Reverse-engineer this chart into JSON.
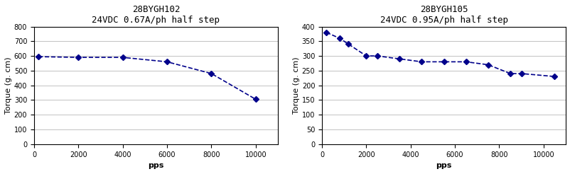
{
  "chart1": {
    "title": "28BYGH102",
    "subtitle": "24VDC 0.67A/ph half step",
    "x": [
      200,
      2000,
      4000,
      6000,
      8000,
      10000
    ],
    "y": [
      595,
      590,
      590,
      560,
      480,
      305
    ],
    "xlim": [
      0,
      11000
    ],
    "ylim": [
      0,
      800
    ],
    "xticks": [
      0,
      2000,
      4000,
      6000,
      8000,
      10000
    ],
    "yticks": [
      0,
      100,
      200,
      300,
      400,
      500,
      600,
      700,
      800
    ],
    "xlabel": "pps",
    "ylabel": "Torque (g. cm)"
  },
  "chart2": {
    "title": "28BYGH105",
    "subtitle": "24VDC 0.95A/ph half step",
    "x": [
      200,
      800,
      1200,
      2000,
      2500,
      3500,
      4500,
      5500,
      6500,
      7500,
      8500,
      9000,
      10500
    ],
    "y": [
      380,
      360,
      340,
      300,
      300,
      290,
      280,
      280,
      280,
      270,
      240,
      240,
      230
    ],
    "xlim": [
      0,
      11000
    ],
    "ylim": [
      0,
      400
    ],
    "xticks": [
      0,
      2000,
      4000,
      6000,
      8000,
      10000
    ],
    "yticks": [
      0,
      50,
      100,
      150,
      200,
      250,
      300,
      350,
      400
    ],
    "xlabel": "pps",
    "ylabel": "Torque (g. cm)"
  },
  "line_color": "#00008B",
  "marker": "D",
  "markersize": 4,
  "linewidth": 1.2,
  "background_color": "#ffffff",
  "grid_color": "#aaaaaa",
  "title_fontsize": 9,
  "subtitle_fontsize": 8,
  "axis_label_fontsize": 8,
  "tick_fontsize": 7
}
